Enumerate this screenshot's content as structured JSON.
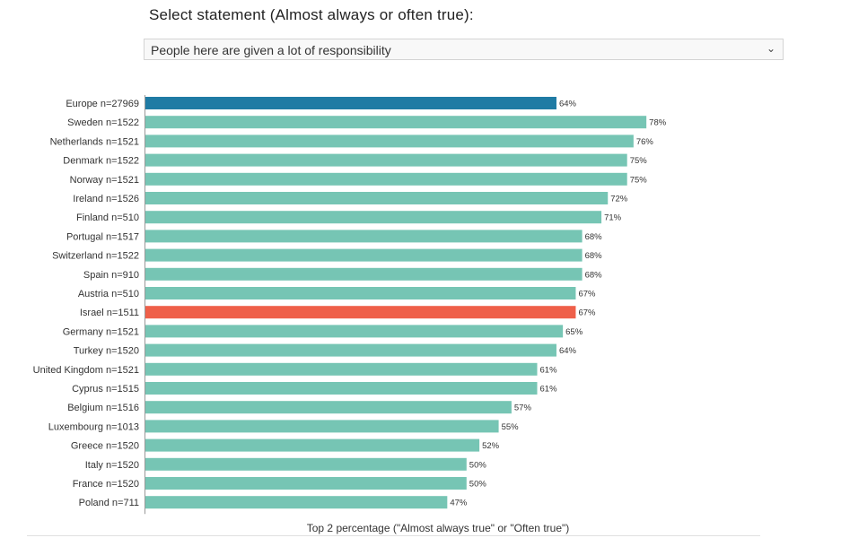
{
  "header": {
    "title": "Select statement (Almost always or often true):",
    "selected_statement": "People here are given a lot of responsibility"
  },
  "colors": {
    "default_bar": "#76c5b4",
    "europe_bar": "#1f7ba4",
    "israel_bar": "#ef5f49"
  },
  "chart_data": {
    "type": "bar",
    "orientation": "horizontal",
    "xlabel": "Top 2 percentage (\"Almost always true\" or \"Often true\")",
    "xlim": [
      0,
      100
    ],
    "categories": [
      "Europe n=27969",
      "Sweden n=1522",
      "Netherlands n=1521",
      "Denmark n=1522",
      "Norway n=1521",
      "Ireland n=1526",
      "Finland n=510",
      "Portugal n=1517",
      "Switzerland n=1522",
      "Spain n=910",
      "Austria n=510",
      "Israel n=1511",
      "Germany n=1521",
      "Turkey n=1520",
      "United Kingdom n=1521",
      "Cyprus n=1515",
      "Belgium n=1516",
      "Luxembourg n=1013",
      "Greece n=1520",
      "Italy n=1520",
      "France n=1520",
      "Poland n=711"
    ],
    "values": [
      64,
      78,
      76,
      75,
      75,
      72,
      71,
      68,
      68,
      68,
      67,
      67,
      65,
      64,
      61,
      61,
      57,
      55,
      52,
      50,
      50,
      47
    ],
    "labels": [
      "64%",
      "78%",
      "76%",
      "75%",
      "75%",
      "72%",
      "71%",
      "68%",
      "68%",
      "68%",
      "67%",
      "67%",
      "65%",
      "64%",
      "61%",
      "61%",
      "57%",
      "55%",
      "52%",
      "50%",
      "50%",
      "47%"
    ],
    "highlight": {
      "Europe n=27969": "europe_bar",
      "Israel n=1511": "israel_bar"
    }
  }
}
